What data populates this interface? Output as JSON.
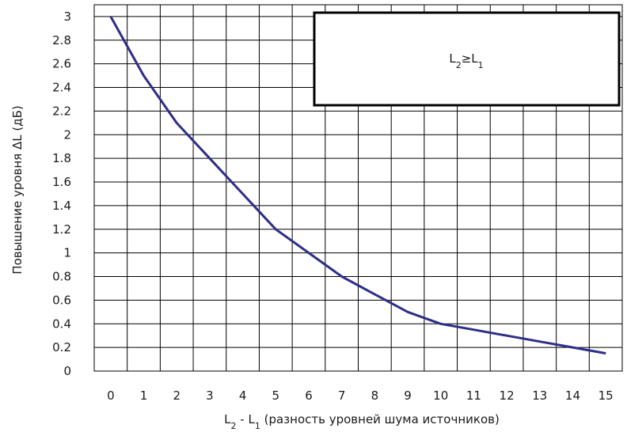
{
  "chart_data": {
    "type": "line",
    "title": "",
    "xlabel": {
      "parts": [
        {
          "text": "L",
          "sub": false
        },
        {
          "text": "2",
          "sub": true
        },
        {
          "text": " - L",
          "sub": false
        },
        {
          "text": "1",
          "sub": true
        },
        {
          "text": " (разность уровней шума источников)",
          "sub": false
        }
      ]
    },
    "ylabel": "Повышение уровня ΔL (дБ)",
    "x": [
      0,
      1,
      2,
      3,
      4,
      5,
      6,
      7,
      8,
      9,
      10,
      11,
      12,
      13,
      14,
      15
    ],
    "series": [
      {
        "values": [
          3.0,
          2.5,
          2.1,
          1.8,
          1.5,
          1.2,
          1.0,
          0.8,
          0.65,
          0.5,
          0.4,
          0.35,
          0.3,
          0.25,
          0.2,
          0.15
        ],
        "color": "#2e2e8a"
      }
    ],
    "x_ticks": [
      "0",
      "1",
      "2",
      "3",
      "4",
      "5",
      "6",
      "7",
      "8",
      "9",
      "10",
      "11",
      "12",
      "13",
      "14",
      "15"
    ],
    "y_ticks": [
      "0",
      "0.2",
      "0.4",
      "0.6",
      "0.8",
      "1",
      "1.2",
      "1.4",
      "1.6",
      "1.8",
      "2",
      "2.2",
      "2.4",
      "2.6",
      "2.8",
      "3"
    ],
    "xlim": [
      -0.5,
      15.5
    ],
    "ylim": [
      0,
      3.1
    ],
    "grid": true,
    "annotation": {
      "placement": "top-right",
      "parts": [
        {
          "text": "L",
          "sub": false
        },
        {
          "text": "2",
          "sub": true
        },
        {
          "text": "≥L",
          "sub": false
        },
        {
          "text": "1",
          "sub": true
        }
      ]
    }
  }
}
